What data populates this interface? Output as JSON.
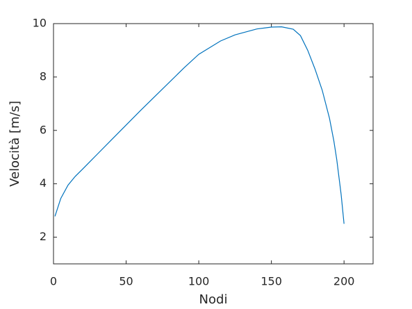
{
  "chart_data": {
    "type": "line",
    "xlabel": "Nodi",
    "ylabel": "Velocità [m/s]",
    "x": [
      1,
      5,
      10,
      15,
      20,
      30,
      40,
      50,
      60,
      75,
      90,
      100,
      115,
      125,
      140,
      150,
      157,
      165,
      170,
      175,
      180,
      185,
      190,
      193,
      195,
      198,
      200
    ],
    "series": [
      {
        "name": "Velocità",
        "color": "#0072bd",
        "values": [
          2.78,
          3.45,
          3.95,
          4.28,
          4.55,
          5.1,
          5.65,
          6.2,
          6.75,
          7.55,
          8.35,
          8.85,
          9.35,
          9.58,
          9.8,
          9.87,
          9.88,
          9.79,
          9.55,
          9.0,
          8.3,
          7.5,
          6.45,
          5.6,
          4.9,
          3.6,
          2.5
        ]
      }
    ],
    "xlim": [
      0,
      220
    ],
    "xticks": [
      0,
      50,
      100,
      150,
      200
    ],
    "ylim": [
      1,
      10
    ],
    "yticks": [
      2,
      4,
      6,
      8,
      10
    ],
    "grid": false
  }
}
